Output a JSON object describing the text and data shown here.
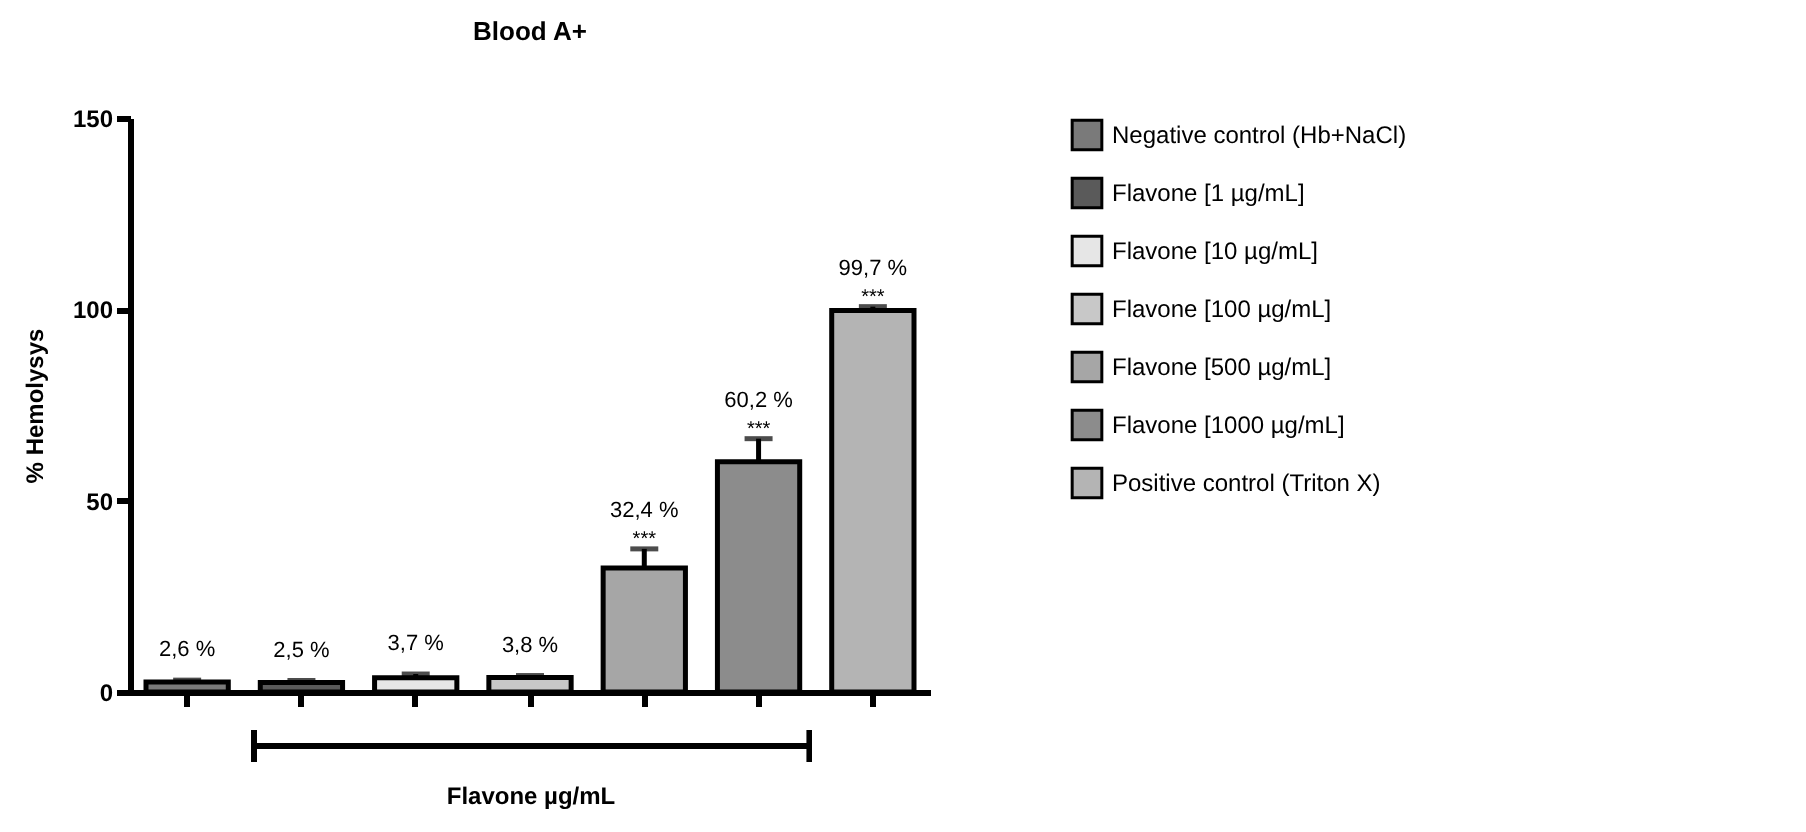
{
  "chart_data": {
    "type": "bar",
    "title": "Blood A+",
    "xlabel": "Flavone µg/mL",
    "ylabel": "% Hemolysys",
    "categories": [
      null,
      null,
      null,
      null,
      null,
      null,
      null
    ],
    "series": [
      {
        "name": "Negative control (Hb+NaCl)",
        "color": "#7a7a7a",
        "values": [
          2.6,
          null,
          null,
          null,
          null,
          null,
          null
        ],
        "errors": [
          0.5,
          null,
          null,
          null,
          null,
          null,
          null
        ],
        "value_labels": [
          "2,6 %",
          null,
          null,
          null,
          null,
          null,
          null
        ]
      },
      {
        "name": "Flavone [1 µg/mL]",
        "color": "#5a5a5a",
        "values": [
          null,
          2.5,
          null,
          null,
          null,
          null,
          null
        ],
        "errors": [
          null,
          0.5,
          null,
          null,
          null,
          null,
          null
        ],
        "value_labels": [
          null,
          "2,5 %",
          null,
          null,
          null,
          null,
          null
        ]
      },
      {
        "name": "Flavone [10 µg/mL]",
        "color": "#e6e6e6",
        "values": [
          null,
          null,
          3.7,
          null,
          null,
          null,
          null
        ],
        "errors": [
          null,
          null,
          1,
          null,
          null,
          null,
          null
        ],
        "value_labels": [
          null,
          null,
          "3,7 %",
          null,
          null,
          null,
          null
        ]
      },
      {
        "name": "Flavone [100 µg/mL]",
        "color": "#c8c8c8",
        "values": [
          null,
          null,
          null,
          3.8,
          null,
          null,
          null
        ],
        "errors": [
          null,
          null,
          null,
          0.5,
          null,
          null,
          null
        ],
        "value_labels": [
          null,
          null,
          null,
          "3,8 %",
          null,
          null,
          null
        ]
      },
      {
        "name": "Flavone [500 µg/mL]",
        "color": "#a6a6a6",
        "values": [
          null,
          null,
          null,
          null,
          32.4,
          null,
          null
        ],
        "errors": [
          null,
          null,
          null,
          null,
          5,
          null,
          null
        ],
        "value_labels": [
          null,
          null,
          null,
          null,
          "32,4 %",
          null,
          null
        ]
      },
      {
        "name": "Flavone [1000 µg/mL]",
        "color": "#8c8c8c",
        "values": [
          null,
          null,
          null,
          null,
          null,
          60.2,
          null
        ],
        "errors": [
          null,
          null,
          null,
          null,
          null,
          6,
          null
        ],
        "value_labels": [
          null,
          null,
          null,
          null,
          null,
          "60,2 %",
          null
        ]
      },
      {
        "name": "Positive control (Triton X)",
        "color": "#b4b4b4",
        "values": [
          null,
          null,
          null,
          null,
          null,
          null,
          99.7
        ],
        "errors": [
          null,
          null,
          null,
          null,
          null,
          null,
          1
        ],
        "value_labels": [
          null,
          null,
          null,
          null,
          null,
          null,
          "99,7 %"
        ]
      }
    ],
    "annotations": [
      "***",
      "***",
      "***"
    ],
    "ylim": [
      0,
      150
    ],
    "yticks": [
      0,
      50,
      100,
      150
    ],
    "grid": false,
    "legend": "right"
  }
}
